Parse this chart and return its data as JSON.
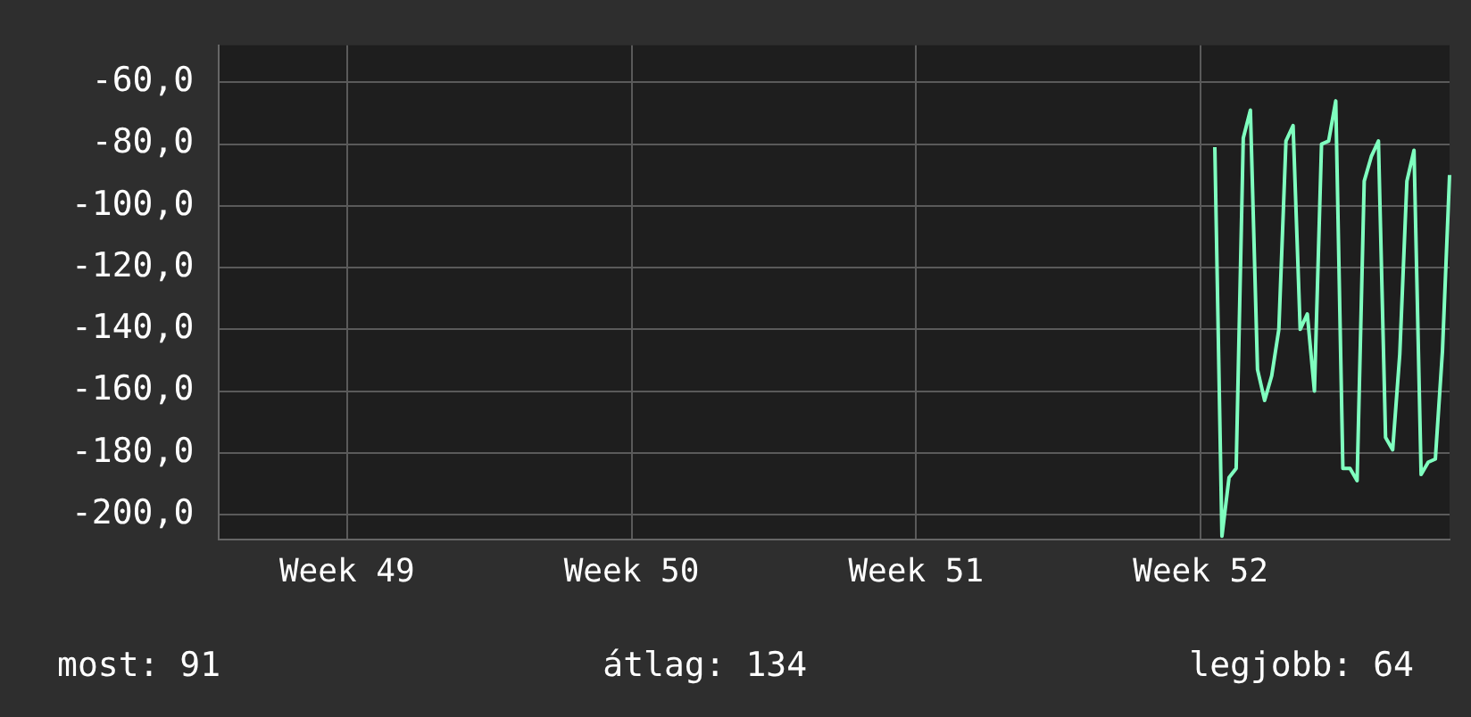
{
  "chart_data": {
    "type": "line",
    "categories": [
      null,
      null,
      null,
      null,
      null,
      null,
      null,
      null,
      null,
      null,
      null,
      null,
      null,
      null,
      null,
      null,
      null,
      null,
      "Week 49",
      null,
      null,
      null,
      null,
      null,
      null,
      null,
      null,
      null,
      null,
      null,
      null,
      null,
      null,
      null,
      null,
      null,
      null,
      null,
      null,
      null,
      null,
      null,
      null,
      null,
      null,
      null,
      null,
      null,
      null,
      null,
      null,
      null,
      null,
      null,
      null,
      null,
      null,
      null,
      "Week 50",
      null,
      null,
      null,
      null,
      null,
      null,
      null,
      null,
      null,
      null,
      null,
      null,
      null,
      null,
      null,
      null,
      null,
      null,
      null,
      null,
      null,
      null,
      null,
      null,
      null,
      null,
      null,
      null,
      null,
      null,
      null,
      null,
      null,
      null,
      null,
      null,
      null,
      null,
      null,
      "Week 51",
      null,
      null,
      null,
      null,
      null,
      null,
      null,
      null,
      null,
      null,
      null,
      null,
      null,
      null,
      null,
      null,
      null,
      null,
      null,
      null,
      null,
      null,
      null,
      null,
      null,
      null,
      null,
      null,
      null,
      null,
      null,
      null,
      null,
      null,
      null,
      null,
      null,
      null,
      null,
      "Week 52",
      null,
      null,
      null,
      null,
      null,
      null,
      null,
      null,
      null,
      null,
      null,
      null,
      null,
      null,
      null,
      null,
      null,
      null,
      null,
      null,
      null,
      null,
      null,
      null,
      null,
      null,
      null,
      null,
      null,
      null,
      null,
      null,
      null,
      null,
      null
    ],
    "series": [
      {
        "color": "#7fffbf",
        "values": [
          null,
          null,
          null,
          null,
          null,
          null,
          null,
          null,
          null,
          null,
          null,
          null,
          null,
          null,
          null,
          null,
          null,
          null,
          null,
          null,
          null,
          null,
          null,
          null,
          null,
          null,
          null,
          null,
          null,
          null,
          null,
          null,
          null,
          null,
          null,
          null,
          null,
          null,
          null,
          null,
          null,
          null,
          null,
          null,
          null,
          null,
          null,
          null,
          null,
          null,
          null,
          null,
          null,
          null,
          null,
          null,
          null,
          null,
          null,
          null,
          null,
          null,
          null,
          null,
          null,
          null,
          null,
          null,
          null,
          null,
          null,
          null,
          null,
          null,
          null,
          null,
          null,
          null,
          null,
          null,
          null,
          null,
          null,
          null,
          null,
          null,
          null,
          null,
          null,
          null,
          null,
          null,
          null,
          null,
          null,
          null,
          null,
          null,
          null,
          null,
          null,
          null,
          null,
          null,
          null,
          null,
          null,
          null,
          null,
          null,
          null,
          null,
          null,
          null,
          null,
          null,
          null,
          null,
          null,
          null,
          null,
          null,
          null,
          null,
          null,
          null,
          null,
          null,
          null,
          null,
          null,
          null,
          null,
          null,
          null,
          null,
          null,
          null,
          null,
          null,
          -81,
          -207,
          -188,
          -185,
          -78,
          -69,
          -153,
          -163,
          -155,
          -140,
          -79,
          -74,
          -140,
          -135,
          -160,
          -80,
          -79,
          -66,
          -185,
          -185,
          -189,
          -92,
          -84,
          -79,
          -175,
          -179,
          -148,
          -92,
          -82,
          -187,
          -183,
          -182,
          -147,
          -90
        ]
      }
    ],
    "ylim": [
      -208,
      -48
    ],
    "yticks": [
      {
        "value": -60,
        "label": "-60,0"
      },
      {
        "value": -80,
        "label": "-80,0"
      },
      {
        "value": -100,
        "label": "-100,0"
      },
      {
        "value": -120,
        "label": "-120,0"
      },
      {
        "value": -140,
        "label": "-140,0"
      },
      {
        "value": -160,
        "label": "-160,0"
      },
      {
        "value": -180,
        "label": "-180,0"
      },
      {
        "value": -200,
        "label": "-200,0"
      }
    ],
    "grid": true,
    "legend": false,
    "marker": "none",
    "line_style": "solid",
    "annotations": [
      "most: 91",
      "átlag: 134",
      "legjobb: 64"
    ]
  }
}
